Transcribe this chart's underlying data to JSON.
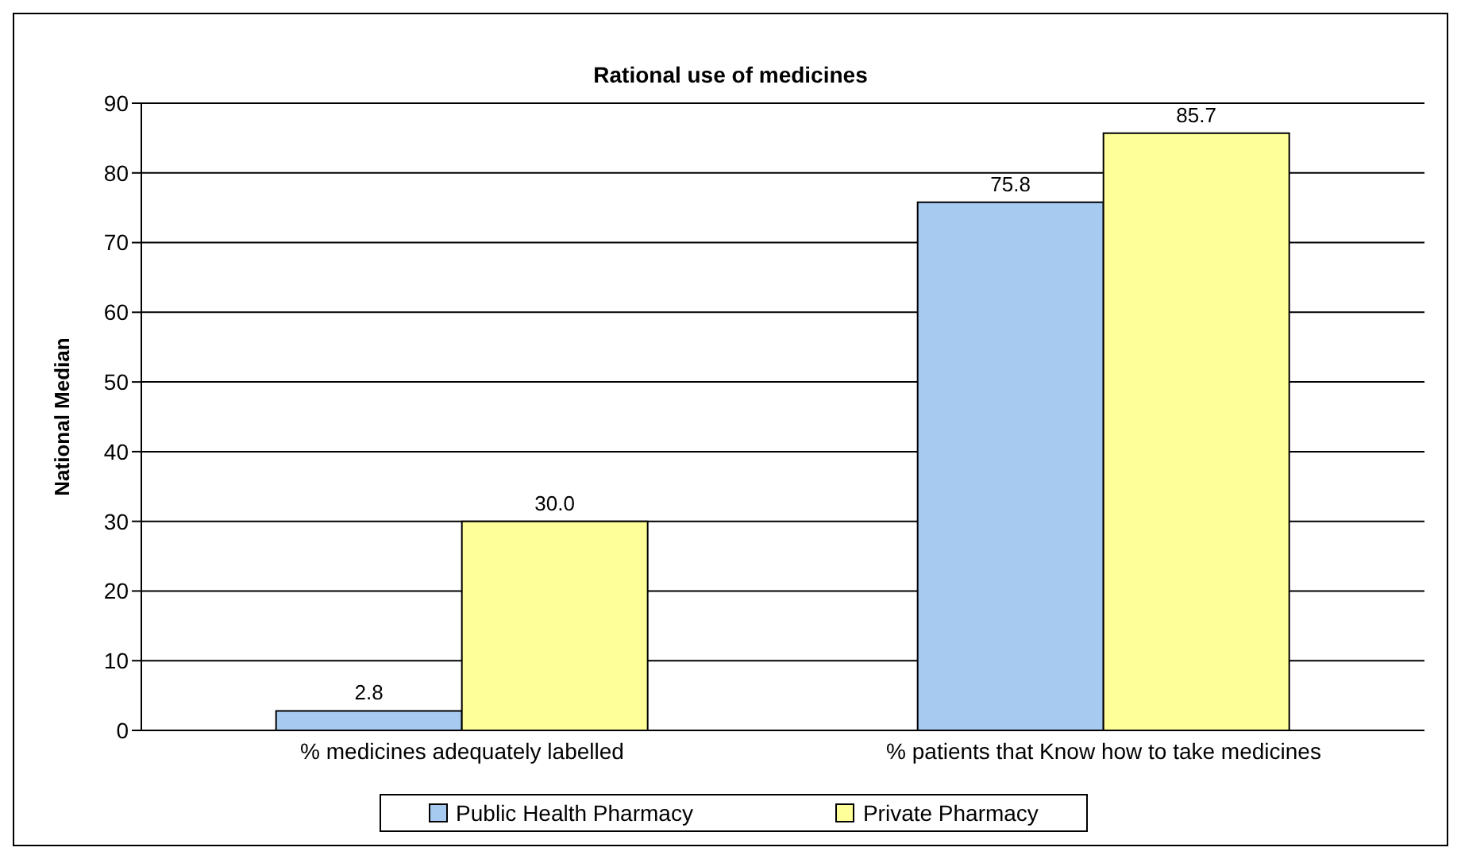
{
  "chart_data": {
    "type": "bar",
    "title": "Rational use of medicines",
    "ylabel": "National Median",
    "categories": [
      "% medicines adequately labelled",
      "% patients that Know how to take medicines"
    ],
    "series": [
      {
        "name": "Public Health Pharmacy",
        "color": "#a6caf0",
        "values": [
          2.8,
          75.8
        ],
        "value_labels": [
          "2.8",
          "75.8"
        ]
      },
      {
        "name": "Private Pharmacy",
        "color": "#ffff99",
        "values": [
          30.0,
          85.7
        ],
        "value_labels": [
          "30.0",
          "85.7"
        ]
      }
    ],
    "ylim": [
      0,
      90
    ],
    "yticks": [
      0,
      10,
      20,
      30,
      40,
      50,
      60,
      70,
      80,
      90
    ],
    "grid": "y",
    "legend": "bottom"
  }
}
